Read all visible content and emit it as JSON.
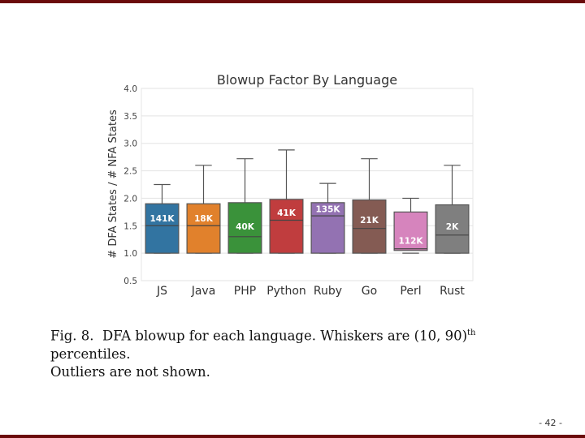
{
  "caption": {
    "fig": "Fig. 8.",
    "text_before_sup": "DFA blowup for each language. Whiskers are (10, 90)",
    "sup": "th",
    "text_after_sup": " percentiles.",
    "line2": "Outliers are not shown."
  },
  "page_number": "- 42 -",
  "colors": {
    "frame": "#6b0b0b"
  },
  "chart_data": {
    "type": "box",
    "title": "Blowup Factor By Language",
    "xlabel": "",
    "ylabel": "# DFA States / # NFA States",
    "ylim": [
      0.5,
      4.0
    ],
    "yticks": [
      "0.5",
      "1.0",
      "1.5",
      "2.0",
      "2.5",
      "3.0",
      "3.5",
      "4.0"
    ],
    "grid": true,
    "categories": [
      "JS",
      "Java",
      "PHP",
      "Python",
      "Ruby",
      "Go",
      "Perl",
      "Rust"
    ],
    "boxes": [
      {
        "name": "JS",
        "whisker_low": 1.0,
        "q1": 1.0,
        "median": 1.5,
        "q3": 1.9,
        "whisker_high": 2.25,
        "label": "141K",
        "color": "#3274a1"
      },
      {
        "name": "Java",
        "whisker_low": 1.0,
        "q1": 1.0,
        "median": 1.5,
        "q3": 1.9,
        "whisker_high": 2.6,
        "label": "18K",
        "color": "#e1812c"
      },
      {
        "name": "PHP",
        "whisker_low": 1.0,
        "q1": 1.0,
        "median": 1.3,
        "q3": 1.92,
        "whisker_high": 2.72,
        "label": "40K",
        "color": "#3a923a"
      },
      {
        "name": "Python",
        "whisker_low": 1.0,
        "q1": 1.0,
        "median": 1.6,
        "q3": 1.98,
        "whisker_high": 2.88,
        "label": "41K",
        "color": "#c03d3e"
      },
      {
        "name": "Ruby",
        "whisker_low": 1.0,
        "q1": 1.0,
        "median": 1.68,
        "q3": 1.92,
        "whisker_high": 2.27,
        "label": "135K",
        "color": "#9372b2"
      },
      {
        "name": "Go",
        "whisker_low": 1.0,
        "q1": 1.0,
        "median": 1.45,
        "q3": 1.97,
        "whisker_high": 2.72,
        "label": "21K",
        "color": "#845b53"
      },
      {
        "name": "Perl",
        "whisker_low": 1.0,
        "q1": 1.05,
        "median": 1.08,
        "q3": 1.75,
        "whisker_high": 2.0,
        "label": "112K",
        "color": "#d684bd"
      },
      {
        "name": "Rust",
        "whisker_low": 1.0,
        "q1": 1.0,
        "median": 1.33,
        "q3": 1.88,
        "whisker_high": 2.6,
        "label": "2K",
        "color": "#7f7f7f"
      }
    ]
  }
}
